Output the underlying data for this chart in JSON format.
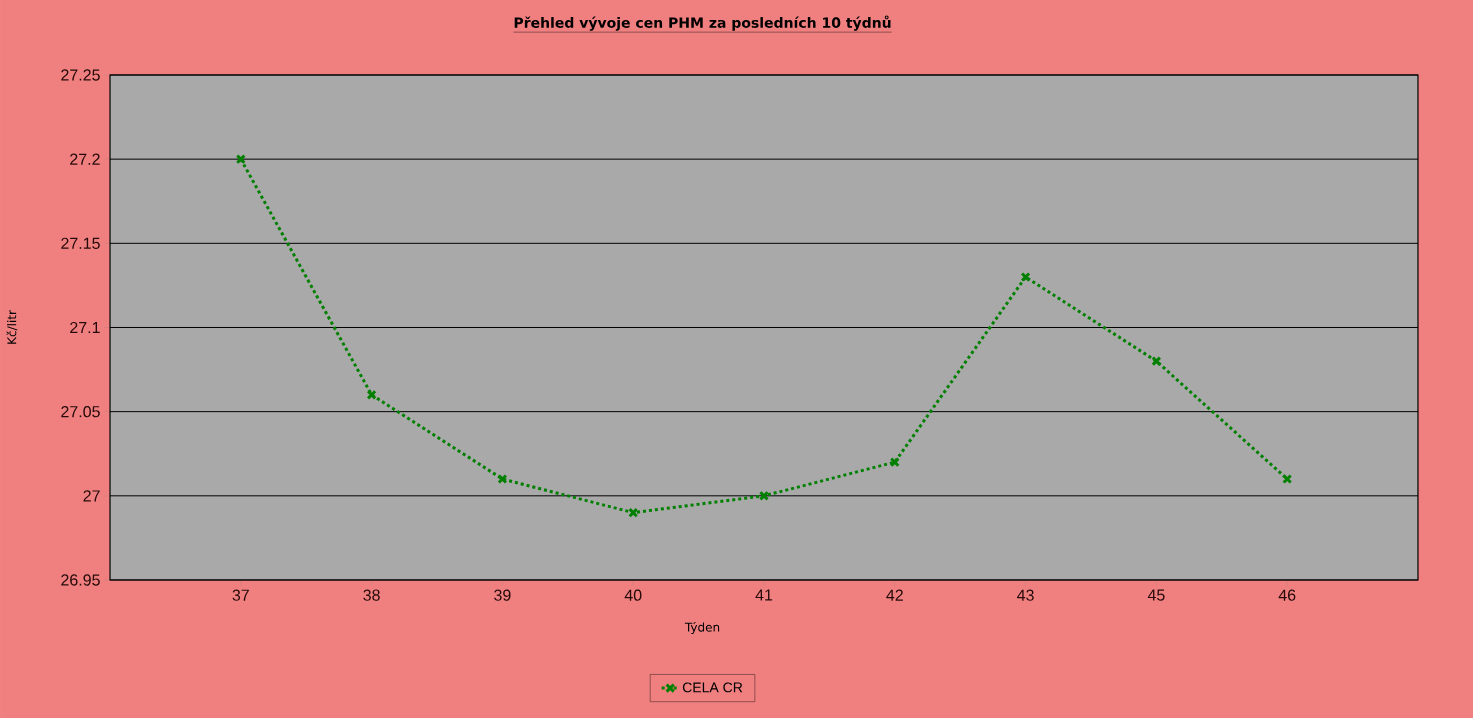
{
  "chart_data": {
    "type": "line",
    "title": "Přehled vývoje cen PHM za posledních 10 týdnů",
    "xlabel": "Týden",
    "ylabel": "Kč/litr",
    "categories": [
      "37",
      "38",
      "39",
      "40",
      "41",
      "42",
      "43",
      "45",
      "46"
    ],
    "series": [
      {
        "name": "CELA CR",
        "color": "#008000",
        "values": [
          27.2,
          27.06,
          27.01,
          26.99,
          27.0,
          27.02,
          27.13,
          27.08,
          27.01
        ]
      }
    ],
    "ylim": [
      26.95,
      27.25
    ],
    "yticks": [
      26.95,
      27,
      27.05,
      27.1,
      27.15,
      27.2,
      27.25
    ],
    "grid": "y",
    "legend": "bottom",
    "marker": "cross",
    "line_style": "dotted"
  }
}
